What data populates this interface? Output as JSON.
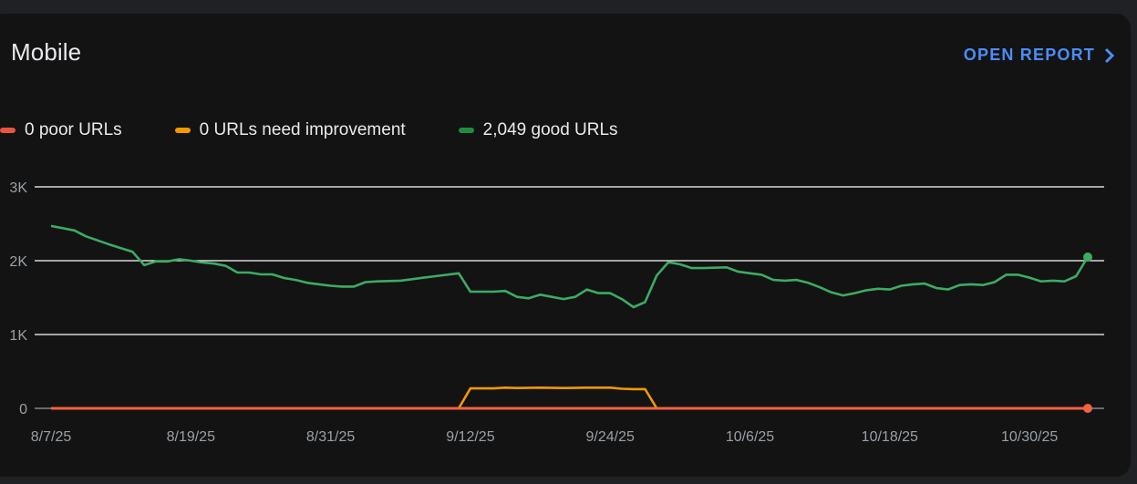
{
  "card": {
    "title": "Mobile",
    "open_report_label": "OPEN REPORT",
    "open_report_icon": "chevron-right-icon"
  },
  "legend": [
    {
      "label": "0 poor URLs",
      "color": "#e8553f"
    },
    {
      "label": "0 URLs need improvement",
      "color": "#f29900"
    },
    {
      "label": "2,049 good URLs",
      "color": "#1e8e3e"
    }
  ],
  "colors": {
    "background": "#202124",
    "card": "#131313",
    "accent": "#4c8df6",
    "good_line": "#3dab64",
    "needs_improvement_line": "#f29900",
    "poor_line": "#f06342",
    "gridline": "#ffffff",
    "axis_text": "#9aa0a6"
  },
  "chart_data": {
    "type": "line",
    "title": "Mobile",
    "xlabel": "",
    "ylabel": "",
    "ylim": [
      0,
      3000
    ],
    "yticks": [
      {
        "label": "3K",
        "value": 3000
      },
      {
        "label": "2K",
        "value": 2000
      },
      {
        "label": "1K",
        "value": 1000
      },
      {
        "label": "0",
        "value": 0
      }
    ],
    "xticks": [
      {
        "label": "8/7/25",
        "day": 0
      },
      {
        "label": "8/19/25",
        "day": 12
      },
      {
        "label": "8/31/25",
        "day": 24
      },
      {
        "label": "9/12/25",
        "day": 36
      },
      {
        "label": "9/24/25",
        "day": 48
      },
      {
        "label": "10/6/25",
        "day": 60
      },
      {
        "label": "10/18/25",
        "day": 72
      },
      {
        "label": "10/30/25",
        "day": 84
      }
    ],
    "x_range_days": [
      0,
      90
    ],
    "grid": true,
    "legend_position": "top-left",
    "series": [
      {
        "name": "good URLs",
        "color": "#3dab64",
        "end_marker": true,
        "points": [
          [
            0,
            2470
          ],
          [
            2,
            2410
          ],
          [
            3,
            2330
          ],
          [
            5,
            2220
          ],
          [
            7,
            2120
          ],
          [
            8,
            1940
          ],
          [
            9,
            1990
          ],
          [
            10,
            1990
          ],
          [
            11,
            2020
          ],
          [
            12,
            2000
          ],
          [
            13,
            1975
          ],
          [
            14,
            1960
          ],
          [
            15,
            1930
          ],
          [
            16,
            1840
          ],
          [
            17,
            1840
          ],
          [
            18,
            1815
          ],
          [
            19,
            1815
          ],
          [
            20,
            1765
          ],
          [
            21,
            1740
          ],
          [
            22,
            1700
          ],
          [
            23,
            1680
          ],
          [
            24,
            1660
          ],
          [
            25,
            1650
          ],
          [
            26,
            1650
          ],
          [
            27,
            1710
          ],
          [
            28,
            1720
          ],
          [
            30,
            1730
          ],
          [
            31,
            1750
          ],
          [
            32,
            1770
          ],
          [
            33,
            1790
          ],
          [
            35,
            1830
          ],
          [
            36,
            1580
          ],
          [
            37,
            1580
          ],
          [
            38,
            1580
          ],
          [
            39,
            1590
          ],
          [
            40,
            1510
          ],
          [
            41,
            1490
          ],
          [
            42,
            1540
          ],
          [
            44,
            1480
          ],
          [
            45,
            1510
          ],
          [
            46,
            1610
          ],
          [
            47,
            1560
          ],
          [
            48,
            1560
          ],
          [
            49,
            1480
          ],
          [
            50,
            1370
          ],
          [
            51,
            1440
          ],
          [
            52,
            1800
          ],
          [
            53,
            1980
          ],
          [
            54,
            1950
          ],
          [
            55,
            1900
          ],
          [
            56,
            1900
          ],
          [
            58,
            1910
          ],
          [
            59,
            1850
          ],
          [
            60,
            1830
          ],
          [
            61,
            1810
          ],
          [
            62,
            1740
          ],
          [
            63,
            1730
          ],
          [
            64,
            1740
          ],
          [
            65,
            1700
          ],
          [
            66,
            1640
          ],
          [
            67,
            1570
          ],
          [
            68,
            1530
          ],
          [
            69,
            1560
          ],
          [
            70,
            1600
          ],
          [
            71,
            1620
          ],
          [
            72,
            1610
          ],
          [
            73,
            1660
          ],
          [
            74,
            1680
          ],
          [
            75,
            1690
          ],
          [
            76,
            1630
          ],
          [
            77,
            1610
          ],
          [
            78,
            1670
          ],
          [
            79,
            1680
          ],
          [
            80,
            1670
          ],
          [
            81,
            1710
          ],
          [
            82,
            1810
          ],
          [
            83,
            1810
          ],
          [
            84,
            1770
          ],
          [
            85,
            1720
          ],
          [
            86,
            1730
          ],
          [
            87,
            1720
          ],
          [
            88,
            1790
          ],
          [
            89,
            2049
          ]
        ]
      },
      {
        "name": "URLs need improvement",
        "color": "#f29900",
        "end_marker": false,
        "points": [
          [
            0,
            0
          ],
          [
            35,
            0
          ],
          [
            36,
            270
          ],
          [
            37,
            270
          ],
          [
            38,
            270
          ],
          [
            39,
            280
          ],
          [
            40,
            275
          ],
          [
            42,
            280
          ],
          [
            44,
            275
          ],
          [
            46,
            280
          ],
          [
            48,
            280
          ],
          [
            49,
            265
          ],
          [
            50,
            260
          ],
          [
            51,
            260
          ],
          [
            52,
            0
          ],
          [
            89,
            0
          ]
        ]
      },
      {
        "name": "poor URLs",
        "color": "#f06342",
        "end_marker": true,
        "points": [
          [
            0,
            0
          ],
          [
            89,
            0
          ]
        ]
      }
    ]
  }
}
